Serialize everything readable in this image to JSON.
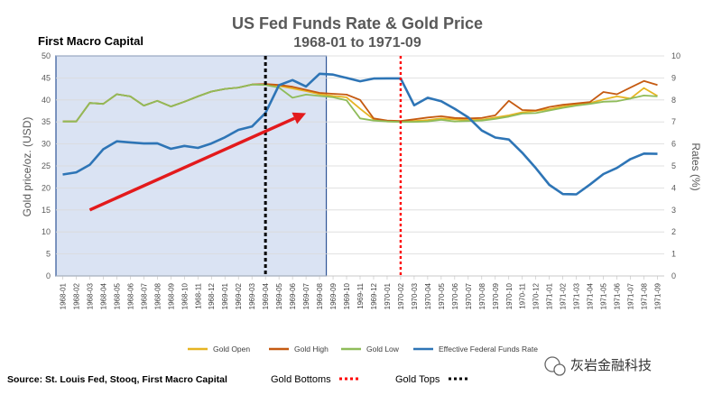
{
  "chart_data": {
    "type": "line",
    "title": "US Fed Funds Rate & Gold Price",
    "subtitle": "1968-01 to 1971-09",
    "brand": "First Macro Capital",
    "ylabel": "Gold price/oz. (USD)",
    "ylabel_right": "Rates (%)",
    "ylim": [
      0,
      50
    ],
    "ylim_right": [
      0,
      10
    ],
    "yticks": [
      0,
      5,
      10,
      15,
      20,
      25,
      30,
      35,
      40,
      45,
      50
    ],
    "yticks_right": [
      0,
      1,
      2,
      3,
      4,
      5,
      6,
      7,
      8,
      9,
      10
    ],
    "grid": "horizontal",
    "legend_position": "bottom",
    "categories": [
      "1968-01",
      "1968-02",
      "1968-03",
      "1968-04",
      "1968-05",
      "1968-06",
      "1968-07",
      "1968-08",
      "1968-09",
      "1968-10",
      "1968-11",
      "1968-12",
      "1969-01",
      "1969-02",
      "1969-03",
      "1969-04",
      "1969-05",
      "1969-06",
      "1969-07",
      "1969-08",
      "1969-09",
      "1969-10",
      "1969-11",
      "1969-12",
      "1970-01",
      "1970-02",
      "1970-03",
      "1970-04",
      "1970-05",
      "1970-06",
      "1970-07",
      "1970-08",
      "1970-09",
      "1970-10",
      "1970-11",
      "1970-12",
      "1971-01",
      "1971-02",
      "1971-03",
      "1971-04",
      "1971-05",
      "1971-06",
      "1971-07",
      "1971-08",
      "1971-09"
    ],
    "series": [
      {
        "name": "Gold Open",
        "axis": "left",
        "color": "#e6b422",
        "values": [
          35.1,
          35.1,
          39.3,
          39.1,
          41.3,
          40.8,
          38.7,
          39.8,
          38.5,
          39.6,
          40.8,
          41.9,
          42.5,
          42.8,
          43.5,
          43.5,
          43.2,
          42.6,
          42.0,
          41.3,
          40.9,
          40.6,
          38.0,
          35.6,
          35.1,
          35.0,
          35.2,
          35.4,
          35.8,
          35.6,
          35.4,
          35.5,
          36.0,
          36.5,
          37.2,
          37.5,
          37.9,
          38.5,
          38.9,
          39.3,
          40.1,
          40.8,
          40.3,
          42.7,
          40.9
        ]
      },
      {
        "name": "Gold High",
        "axis": "left",
        "color": "#c55a11",
        "values": [
          35.1,
          35.1,
          39.3,
          39.1,
          41.3,
          40.8,
          38.7,
          39.8,
          38.5,
          39.6,
          40.8,
          41.9,
          42.5,
          42.8,
          43.5,
          43.6,
          43.4,
          43.0,
          42.3,
          41.6,
          41.4,
          41.2,
          40.0,
          35.8,
          35.3,
          35.2,
          35.6,
          36.0,
          36.3,
          35.9,
          35.8,
          35.9,
          36.5,
          39.8,
          37.7,
          37.6,
          38.4,
          38.9,
          39.2,
          39.5,
          41.8,
          41.3,
          42.8,
          44.3,
          43.4
        ]
      },
      {
        "name": "Gold Low",
        "axis": "left",
        "color": "#8fbc5a",
        "values": [
          35.1,
          35.1,
          39.3,
          39.1,
          41.3,
          40.8,
          38.7,
          39.8,
          38.5,
          39.6,
          40.8,
          41.9,
          42.5,
          42.8,
          43.5,
          43.4,
          42.8,
          40.5,
          41.2,
          40.9,
          40.6,
          39.9,
          35.8,
          35.3,
          35.1,
          35.0,
          35.0,
          35.1,
          35.5,
          35.1,
          35.2,
          35.3,
          35.7,
          36.2,
          36.9,
          37.0,
          37.6,
          38.2,
          38.7,
          39.1,
          39.6,
          39.7,
          40.3,
          41.0,
          40.8
        ]
      },
      {
        "name": "Effective Federal Funds Rate",
        "axis": "right",
        "color": "#2e75b6",
        "values": [
          4.61,
          4.71,
          5.05,
          5.76,
          6.12,
          6.07,
          6.02,
          6.03,
          5.78,
          5.91,
          5.82,
          6.02,
          6.3,
          6.64,
          6.79,
          7.41,
          8.67,
          8.9,
          8.61,
          9.19,
          9.15,
          9.0,
          8.85,
          8.97,
          8.98,
          8.98,
          7.76,
          8.1,
          7.94,
          7.6,
          7.21,
          6.61,
          6.29,
          6.2,
          5.6,
          4.9,
          4.14,
          3.72,
          3.71,
          4.15,
          4.63,
          4.91,
          5.31,
          5.56,
          5.55
        ]
      }
    ],
    "annotations": {
      "gold_tops_category": "1969-04",
      "gold_bottoms_category": "1970-02",
      "shaded_range": [
        "1968-01",
        "1969-08"
      ],
      "arrow_from": [
        "1968-03",
        15
      ],
      "arrow_to": [
        "1969-07",
        37
      ]
    }
  },
  "footer": {
    "source": "Source: St. Louis Fed, Stooq, First Macro Capital",
    "gold_bottoms": "Gold Bottoms",
    "gold_tops": "Gold Tops"
  },
  "watermark": "灰岩金融科技",
  "colors": {
    "red_marker": "#ff0000",
    "black_marker": "#000000",
    "arrow": "#e31a1c",
    "shade_fill": "#dae3f3",
    "shade_border": "#2f5597"
  }
}
